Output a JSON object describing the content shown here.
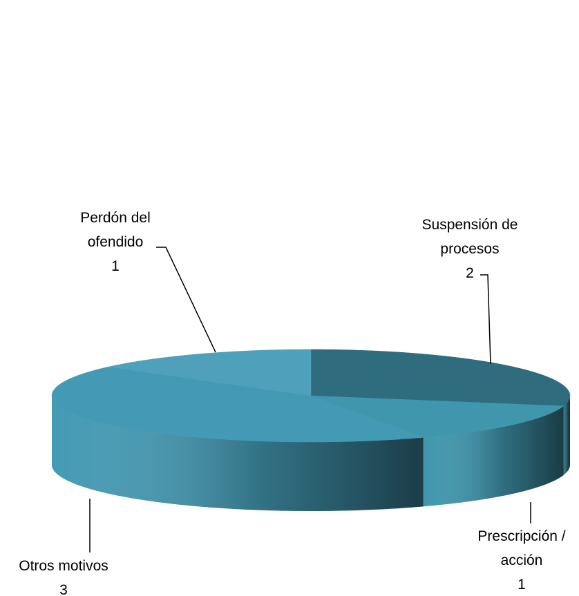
{
  "chart_data": {
    "type": "pie3d",
    "categories": [
      "Suspensión de procesos",
      "Prescripción / acción",
      "Otros motivos",
      "Perdón del ofendido"
    ],
    "values": [
      2,
      1,
      3,
      1
    ],
    "colors": [
      "#2f6c7d",
      "#3f96ad",
      "#449ab4",
      "#4fa0ba"
    ]
  }
}
